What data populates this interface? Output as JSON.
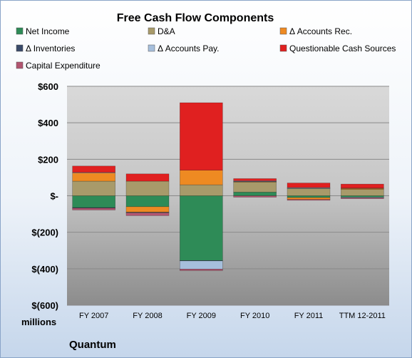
{
  "chart_data": {
    "type": "bar",
    "stacked": true,
    "title": "Free Cash Flow Components",
    "unit_label": "millions",
    "company": "Quantum",
    "categories": [
      "FY 2007",
      "FY 2008",
      "FY 2009",
      "FY 2010",
      "FY 2011",
      "TTM 12-2011"
    ],
    "ylim": [
      -600,
      600
    ],
    "yticks": [
      600,
      400,
      200,
      0,
      -200,
      -400,
      -600
    ],
    "ytick_labels": [
      "$600",
      "$400",
      "$200",
      "$-",
      "$(200)",
      "$(400)",
      "$(600)"
    ],
    "grid": true,
    "legend_position": "top",
    "series": [
      {
        "name": "Net Income",
        "color": "#2e8b57",
        "values": [
          -65,
          -60,
          -355,
          20,
          -10,
          -8
        ]
      },
      {
        "name": "D&A",
        "color": "#a89a6a",
        "values": [
          80,
          80,
          60,
          55,
          40,
          35
        ]
      },
      {
        "name": "Δ Accounts Rec.",
        "color": "#ee8a22",
        "values": [
          45,
          -30,
          80,
          2,
          -10,
          5
        ]
      },
      {
        "name": "Δ Inventories",
        "color": "#3a4a6a",
        "values": [
          -3,
          -2,
          -2,
          2,
          2,
          2
        ]
      },
      {
        "name": "Δ Accounts Pay.",
        "color": "#a6bfdc",
        "values": [
          3,
          -2,
          -45,
          3,
          3,
          -3
        ]
      },
      {
        "name": "Questionable Cash Sources",
        "color": "#e02020",
        "values": [
          35,
          40,
          370,
          12,
          25,
          22
        ]
      },
      {
        "name": "Capital Expenditure",
        "color": "#b25570",
        "values": [
          -10,
          -15,
          -8,
          -8,
          -5,
          -5
        ]
      }
    ]
  }
}
